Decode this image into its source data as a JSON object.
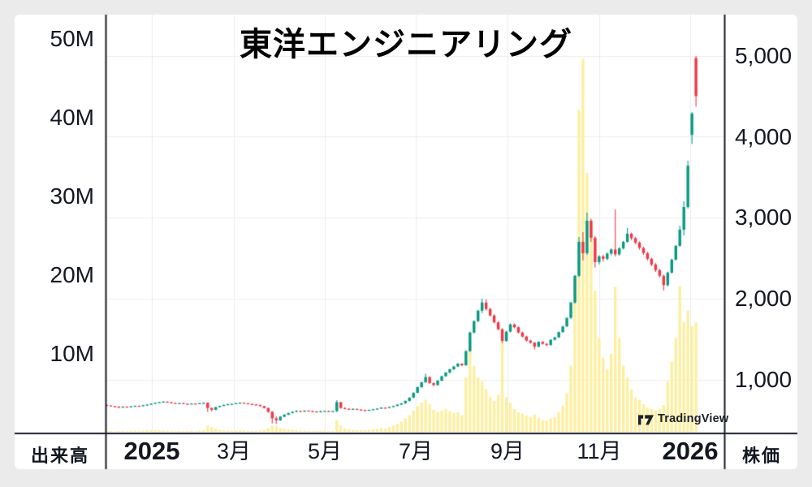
{
  "branding": {
    "label": "TradingView"
  },
  "colors": {
    "up": "#089981",
    "down": "#f23645",
    "volume_bar": "#fcefa1",
    "grid": "#ececef",
    "frame": "#1a1d27",
    "text": "#131722",
    "title": "#000000",
    "background": "#ebebeb",
    "card": "#ffffff"
  },
  "chart_data": {
    "type": "candlestick",
    "title": "東洋エンジニアリング",
    "legend": "none",
    "grid": "on",
    "x_tick_labels": [
      "2025",
      "3月",
      "5月",
      "7月",
      "9月",
      "11月",
      "2026"
    ],
    "price_axis": {
      "label": "株価",
      "side": "right",
      "ticks": [
        1000,
        2000,
        3000,
        4000,
        5000
      ],
      "tick_labels": [
        "5,000",
        "4,000",
        "3,000",
        "2,000",
        "1,000"
      ],
      "range": [
        350,
        5150
      ]
    },
    "volume_axis": {
      "label": "出来高",
      "side": "left",
      "ticks_millions": [
        10,
        20,
        30,
        40,
        50
      ],
      "tick_labels": [
        "50M",
        "40M",
        "30M",
        "20M",
        "10M"
      ],
      "range_millions": [
        0,
        53
      ]
    },
    "ohlcv_note": "open, high, low, close, volume_in_millions; daily-granularity series Dec 2024 - Jan 2026",
    "ohlcv": [
      [
        685,
        690,
        674,
        678,
        0.2
      ],
      [
        678,
        682,
        666,
        670,
        0.2
      ],
      [
        670,
        674,
        656,
        662,
        0.15
      ],
      [
        662,
        668,
        649,
        655,
        0.2
      ],
      [
        655,
        668,
        652,
        664,
        0.2
      ],
      [
        664,
        669,
        654,
        660,
        0.15
      ],
      [
        660,
        672,
        657,
        668,
        0.2
      ],
      [
        668,
        679,
        664,
        674,
        0.25
      ],
      [
        674,
        678,
        663,
        670,
        0.2
      ],
      [
        670,
        686,
        668,
        682,
        0.25
      ],
      [
        682,
        695,
        679,
        690,
        0.3
      ],
      [
        690,
        704,
        687,
        700,
        0.3
      ],
      [
        700,
        716,
        697,
        712,
        0.35
      ],
      [
        712,
        724,
        708,
        720,
        0.3
      ],
      [
        720,
        731,
        716,
        726,
        0.3
      ],
      [
        726,
        729,
        713,
        718,
        0.25
      ],
      [
        718,
        722,
        705,
        710,
        0.25
      ],
      [
        710,
        714,
        699,
        704,
        0.2
      ],
      [
        704,
        712,
        700,
        708,
        0.2
      ],
      [
        708,
        710,
        695,
        700,
        0.2
      ],
      [
        700,
        705,
        690,
        696,
        0.2
      ],
      [
        696,
        707,
        693,
        702,
        0.25
      ],
      [
        702,
        706,
        693,
        698,
        0.2
      ],
      [
        698,
        710,
        695,
        706,
        0.25
      ],
      [
        706,
        716,
        702,
        712,
        0.3
      ],
      [
        712,
        716,
        600,
        648,
        0.9
      ],
      [
        648,
        655,
        605,
        625,
        0.7
      ],
      [
        625,
        662,
        618,
        658,
        0.5
      ],
      [
        658,
        676,
        654,
        672,
        0.35
      ],
      [
        672,
        690,
        668,
        686,
        0.3
      ],
      [
        686,
        698,
        682,
        694,
        0.25
      ],
      [
        694,
        703,
        690,
        698,
        0.25
      ],
      [
        698,
        710,
        694,
        706,
        0.25
      ],
      [
        706,
        717,
        702,
        712,
        0.3
      ],
      [
        712,
        715,
        700,
        705,
        0.25
      ],
      [
        705,
        709,
        693,
        698,
        0.2
      ],
      [
        698,
        702,
        687,
        692,
        0.2
      ],
      [
        692,
        696,
        680,
        685,
        0.2
      ],
      [
        685,
        688,
        664,
        670,
        0.3
      ],
      [
        670,
        674,
        641,
        648,
        0.35
      ],
      [
        648,
        652,
        590,
        600,
        0.6
      ],
      [
        600,
        608,
        455,
        520,
        0.9
      ],
      [
        520,
        545,
        450,
        495,
        0.8
      ],
      [
        495,
        548,
        488,
        540,
        0.6
      ],
      [
        540,
        572,
        535,
        565,
        0.5
      ],
      [
        565,
        591,
        560,
        585,
        0.4
      ],
      [
        585,
        606,
        580,
        600,
        0.35
      ],
      [
        600,
        618,
        596,
        612,
        0.3
      ],
      [
        612,
        615,
        600,
        606,
        0.25
      ],
      [
        606,
        621,
        602,
        615,
        0.25
      ],
      [
        615,
        618,
        604,
        610,
        0.2
      ],
      [
        610,
        613,
        599,
        605,
        0.2
      ],
      [
        605,
        609,
        592,
        598,
        0.2
      ],
      [
        598,
        613,
        594,
        608,
        0.25
      ],
      [
        608,
        617,
        604,
        612,
        0.25
      ],
      [
        612,
        615,
        600,
        606,
        0.2
      ],
      [
        606,
        614,
        601,
        610,
        0.2
      ],
      [
        610,
        745,
        595,
        720,
        1.6
      ],
      [
        720,
        725,
        640,
        648,
        0.9
      ],
      [
        648,
        653,
        632,
        638,
        0.5
      ],
      [
        638,
        642,
        624,
        630,
        0.4
      ],
      [
        630,
        641,
        626,
        636,
        0.35
      ],
      [
        636,
        639,
        622,
        628,
        0.3
      ],
      [
        628,
        632,
        616,
        622,
        0.3
      ],
      [
        622,
        626,
        612,
        618,
        0.3
      ],
      [
        618,
        629,
        614,
        624,
        0.35
      ],
      [
        624,
        637,
        620,
        632,
        0.4
      ],
      [
        632,
        645,
        628,
        640,
        0.5
      ],
      [
        640,
        657,
        636,
        652,
        0.6
      ],
      [
        652,
        655,
        642,
        648,
        0.5
      ],
      [
        648,
        665,
        644,
        660,
        0.7
      ],
      [
        660,
        677,
        656,
        672,
        0.9
      ],
      [
        672,
        693,
        668,
        688,
        1.1
      ],
      [
        688,
        710,
        684,
        705,
        1.4
      ],
      [
        705,
        740,
        700,
        735,
        1.8
      ],
      [
        735,
        780,
        730,
        775,
        2.2
      ],
      [
        775,
        842,
        770,
        835,
        2.8
      ],
      [
        835,
        912,
        830,
        905,
        3.4
      ],
      [
        905,
        972,
        898,
        965,
        3.8
      ],
      [
        965,
        1070,
        958,
        1030,
        4.2
      ],
      [
        1030,
        1038,
        946,
        955,
        3.6
      ],
      [
        955,
        965,
        918,
        930,
        2.9
      ],
      [
        930,
        992,
        924,
        985,
        2.6
      ],
      [
        985,
        1048,
        978,
        1040,
        2.8
      ],
      [
        1040,
        1093,
        1032,
        1085,
        3.0
      ],
      [
        1085,
        1133,
        1078,
        1125,
        2.7
      ],
      [
        1125,
        1168,
        1118,
        1160,
        2.5
      ],
      [
        1160,
        1203,
        1152,
        1195,
        2.6
      ],
      [
        1195,
        1200,
        1163,
        1175,
        2.2
      ],
      [
        1175,
        1360,
        1168,
        1350,
        7.0
      ],
      [
        1350,
        1590,
        1342,
        1580,
        11.7
      ],
      [
        1580,
        1730,
        1570,
        1720,
        8.5
      ],
      [
        1720,
        1860,
        1710,
        1850,
        7.0
      ],
      [
        1850,
        2000,
        1820,
        1950,
        6.5
      ],
      [
        1950,
        1990,
        1850,
        1870,
        5.5
      ],
      [
        1870,
        1885,
        1778,
        1790,
        4.5
      ],
      [
        1790,
        1805,
        1692,
        1705,
        4.0
      ],
      [
        1705,
        1718,
        1606,
        1620,
        4.8
      ],
      [
        1620,
        1632,
        1450,
        1475,
        11.5
      ],
      [
        1475,
        1600,
        1465,
        1590,
        4.5
      ],
      [
        1590,
        1692,
        1582,
        1680,
        3.8
      ],
      [
        1680,
        1690,
        1632,
        1645,
        3.0
      ],
      [
        1645,
        1655,
        1568,
        1580,
        2.6
      ],
      [
        1580,
        1590,
        1518,
        1530,
        2.4
      ],
      [
        1530,
        1540,
        1468,
        1480,
        2.2
      ],
      [
        1480,
        1492,
        1442,
        1455,
        2.0
      ],
      [
        1455,
        1462,
        1370,
        1405,
        2.3
      ],
      [
        1405,
        1472,
        1398,
        1465,
        1.9
      ],
      [
        1465,
        1470,
        1428,
        1440,
        1.6
      ],
      [
        1440,
        1448,
        1412,
        1425,
        1.5
      ],
      [
        1425,
        1496,
        1418,
        1490,
        1.8
      ],
      [
        1490,
        1528,
        1482,
        1520,
        2.0
      ],
      [
        1520,
        1592,
        1512,
        1585,
        2.6
      ],
      [
        1585,
        1662,
        1576,
        1655,
        3.4
      ],
      [
        1655,
        1768,
        1648,
        1760,
        5.0
      ],
      [
        1760,
        1958,
        1750,
        1950,
        8.5
      ],
      [
        1950,
        2290,
        1938,
        2280,
        20
      ],
      [
        2280,
        2760,
        2265,
        2700,
        41
      ],
      [
        2700,
        2820,
        2470,
        2560,
        47.5
      ],
      [
        2560,
        3060,
        2540,
        2960,
        33
      ],
      [
        2960,
        2985,
        2700,
        2750,
        27
      ],
      [
        2750,
        2770,
        2380,
        2450,
        18
      ],
      [
        2450,
        2535,
        2420,
        2520,
        12
      ],
      [
        2520,
        2540,
        2455,
        2490,
        9.5
      ],
      [
        2490,
        2568,
        2470,
        2555,
        8
      ],
      [
        2555,
        2620,
        2535,
        2605,
        10
      ],
      [
        2605,
        3100,
        2520,
        2545,
        18.5
      ],
      [
        2545,
        2632,
        2528,
        2620,
        12
      ],
      [
        2620,
        2712,
        2605,
        2700,
        8.5
      ],
      [
        2700,
        2870,
        2688,
        2800,
        7
      ],
      [
        2800,
        2815,
        2722,
        2745,
        5.5
      ],
      [
        2745,
        2760,
        2668,
        2690,
        4.5
      ],
      [
        2690,
        2705,
        2602,
        2625,
        4.2
      ],
      [
        2625,
        2640,
        2538,
        2560,
        3.6
      ],
      [
        2560,
        2575,
        2468,
        2490,
        3.2
      ],
      [
        2490,
        2505,
        2398,
        2420,
        3.0
      ],
      [
        2420,
        2435,
        2328,
        2350,
        2.8
      ],
      [
        2350,
        2365,
        2258,
        2280,
        3.0
      ],
      [
        2280,
        2295,
        2100,
        2165,
        3.5
      ],
      [
        2165,
        2330,
        2150,
        2320,
        6.5
      ],
      [
        2320,
        2492,
        2308,
        2480,
        9
      ],
      [
        2480,
        2662,
        2468,
        2650,
        12
      ],
      [
        2650,
        2900,
        2638,
        2850,
        18.6
      ],
      [
        2850,
        3200,
        2780,
        3130,
        14
      ],
      [
        3130,
        3700,
        3110,
        3640,
        15.5
      ],
      [
        4020,
        4300,
        3910,
        4285,
        13.5
      ],
      [
        4970,
        4995,
        4370,
        4500,
        14
      ]
    ]
  }
}
